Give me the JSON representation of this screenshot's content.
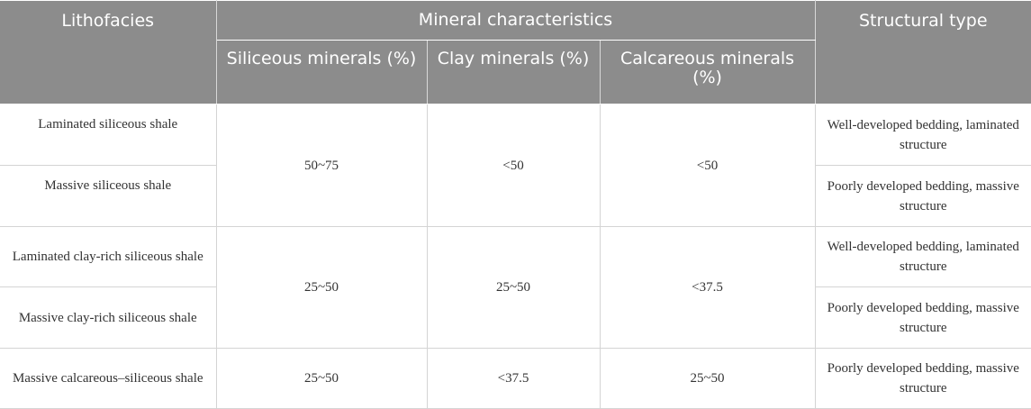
{
  "header": {
    "lithofacies": "Lithofacies",
    "mineral_characteristics": "Mineral characteristics",
    "structural_type": "Structural type",
    "siliceous": "Siliceous minerals (%)",
    "clay": "Clay minerals (%)",
    "calcareous": "Calcareous minerals (%)"
  },
  "rows": [
    {
      "lithofacies": "Laminated siliceous shale",
      "structure": "Well-developed bedding, laminated structure"
    },
    {
      "lithofacies": "Massive siliceous shale",
      "structure": "Poorly developed bedding, massive structure"
    },
    {
      "lithofacies": "Laminated clay-rich siliceous shale",
      "structure": "Well-developed bedding, laminated structure"
    },
    {
      "lithofacies": "Massive clay-rich siliceous shale",
      "structure": "Poorly developed bedding, massive structure"
    },
    {
      "lithofacies": "Massive calcareous–siliceous shale",
      "structure": "Poorly developed bedding, massive structure"
    }
  ],
  "groups": [
    {
      "siliceous": "50~75",
      "clay": "<50",
      "calcareous": "<50"
    },
    {
      "siliceous": "25~50",
      "clay": "25~50",
      "calcareous": "<37.5"
    },
    {
      "siliceous": "25~50",
      "clay": "<37.5",
      "calcareous": "25~50"
    }
  ]
}
